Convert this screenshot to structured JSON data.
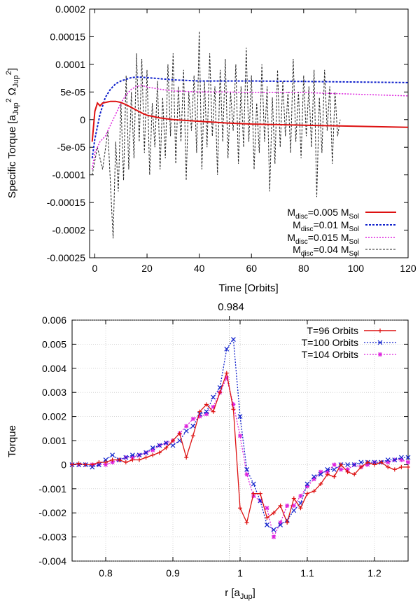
{
  "colors": {
    "red": "#dd1111",
    "blue": "#1122cc",
    "magenta": "#dd22dd",
    "black": "#222222",
    "grid": "#bbbbbb"
  },
  "chart_data": [
    {
      "type": "line",
      "xlabel": "Time [Orbits]",
      "ylabel": "Specific Torque [a",
      "ylabel_parts": [
        "Jup",
        "2",
        "Ω",
        "Jup",
        "2",
        "]"
      ],
      "xlim": [
        -2,
        120
      ],
      "ylim": [
        -0.00025,
        0.0002
      ],
      "xticks": [
        0,
        20,
        40,
        60,
        80,
        100,
        120
      ],
      "xtick_labels": [
        "0",
        "20",
        "40",
        "60",
        "80",
        "100",
        "120"
      ],
      "yticks": [
        -0.00025,
        -0.0002,
        -0.00015,
        -0.0001,
        -5e-05,
        0,
        5e-05,
        0.0001,
        0.00015,
        0.0002
      ],
      "ytick_labels": [
        "-0.00025",
        "-0.0002",
        "-0.00015",
        "-0.0001",
        "-5e-05",
        "0",
        "5e-05",
        "0.0001",
        "0.00015",
        "0.0002"
      ],
      "legend_position": "bottom-right",
      "legend": [
        {
          "prefix": "M",
          "sub": "disc",
          "mid": "=0.005 M",
          "sub2": "Sol"
        },
        {
          "prefix": "M",
          "sub": "disc",
          "mid": "=0.01 M",
          "sub2": "Sol"
        },
        {
          "prefix": "M",
          "sub": "disc",
          "mid": "=0.015 M",
          "sub2": "Sol"
        },
        {
          "prefix": "M",
          "sub": "disc",
          "mid": "=0.04 M",
          "sub2": "Sol"
        }
      ],
      "series": [
        {
          "name": "Mdisc=0.005 MSol",
          "x": [
            -1,
            0,
            1,
            2,
            3,
            4,
            5,
            6,
            8,
            10,
            12,
            14,
            16,
            18,
            20,
            25,
            30,
            40,
            50,
            60,
            70,
            80,
            90,
            100,
            110,
            120
          ],
          "y": [
            -4e-05,
            1.5e-05,
            3e-05,
            2.5e-05,
            3e-05,
            3.1e-05,
            3.2e-05,
            3.3e-05,
            3.3e-05,
            3.1e-05,
            2.7e-05,
            2.2e-05,
            1.7e-05,
            1.2e-05,
            8e-06,
            3e-06,
            0.0,
            -3e-06,
            -6e-06,
            -8e-06,
            -9e-06,
            -1e-05,
            -1.1e-05,
            -1.2e-05,
            -1.3e-05,
            -1.4e-05
          ]
        },
        {
          "name": "Mdisc=0.01 MSol",
          "x": [
            -1,
            0,
            2,
            4,
            6,
            8,
            10,
            12,
            14,
            16,
            20,
            25,
            30,
            40,
            50,
            60,
            80,
            100,
            120
          ],
          "y": [
            -7e-05,
            -3.5e-05,
            1e-05,
            4e-05,
            5.5e-05,
            6.5e-05,
            7e-05,
            7.3e-05,
            7.6e-05,
            7.7e-05,
            7.6e-05,
            7.4e-05,
            7.2e-05,
            7e-05,
            7e-05,
            7e-05,
            6.9e-05,
            6.8e-05,
            6.7e-05
          ]
        },
        {
          "name": "Mdisc=0.015 MSol",
          "x": [
            -1,
            0,
            2,
            4,
            6,
            8,
            10,
            12,
            14,
            16,
            18,
            20,
            25,
            30,
            40,
            50,
            60,
            80,
            100,
            120
          ],
          "y": [
            -9e-05,
            -6e-05,
            -4e-05,
            -3e-05,
            -1e-05,
            1e-05,
            3e-05,
            4.5e-05,
            5.5e-05,
            6e-05,
            6.2e-05,
            5.9e-05,
            5.5e-05,
            5.2e-05,
            5e-05,
            5e-05,
            4.9e-05,
            4.9e-05,
            4.6e-05,
            4.3e-05
          ]
        },
        {
          "name": "Mdisc=0.04 MSol",
          "x": [
            -1,
            1,
            3,
            5,
            7,
            8,
            9,
            10,
            11,
            12,
            13,
            14,
            15,
            16,
            17,
            18,
            19,
            20,
            21,
            22,
            23,
            24,
            25,
            26,
            27,
            28,
            29,
            30,
            31,
            32,
            33,
            34,
            35,
            36,
            37,
            38,
            39,
            40,
            41,
            42,
            43,
            44,
            45,
            46,
            47,
            48,
            49,
            50,
            51,
            52,
            53,
            54,
            55,
            56,
            57,
            58,
            59,
            60,
            61,
            62,
            63,
            64,
            65,
            66,
            67,
            68,
            69,
            70,
            71,
            72,
            73,
            74,
            75,
            76,
            77,
            78,
            79,
            80,
            81,
            82,
            83,
            84,
            85,
            86,
            87,
            88,
            89,
            90,
            91,
            92,
            93,
            94
          ],
          "y": [
            -0.0001,
            -5e-05,
            -9e-05,
            -2e-05,
            -0.000215,
            -4e-05,
            -0.00013,
            3e-05,
            -0.00011,
            8e-05,
            -9e-05,
            5e-05,
            -7e-05,
            0.00012,
            -4e-05,
            0.00011,
            -6e-05,
            9e-05,
            -0.0001,
            3e-05,
            -5e-05,
            7e-05,
            -9e-05,
            4e-05,
            -7e-05,
            0.0001,
            -3e-05,
            0.00012,
            -8e-05,
            6e-05,
            -4e-05,
            9e-05,
            -0.00011,
            5e-05,
            -2e-05,
            8e-05,
            -6e-05,
            0.00016,
            -9e-05,
            7e-05,
            -5e-05,
            0.00012,
            -3e-05,
            6e-05,
            -0.0001,
            9e-05,
            -4e-05,
            0.00011,
            -7e-05,
            5e-05,
            -2e-05,
            0.0001,
            -8e-05,
            6e-05,
            -5e-05,
            0.00013,
            -4e-05,
            8e-05,
            -9e-05,
            3e-05,
            -6e-05,
            0.0001,
            -4e-05,
            6e-05,
            -0.00013,
            4e-05,
            -8e-05,
            9e-05,
            -5e-05,
            7e-05,
            -3e-05,
            5e-05,
            -6e-05,
            0.00011,
            -4e-05,
            5e-05,
            -7e-05,
            8e-05,
            -3e-05,
            6e-05,
            -5e-05,
            9e-05,
            -0.00014,
            4e-05,
            -6e-05,
            9e-05,
            -2e-05,
            6e-05,
            -8e-05,
            5e-05,
            -3e-05,
            0.0
          ]
        }
      ]
    },
    {
      "type": "line",
      "title": "0.984",
      "xlabel": "r [a",
      "xlabel_sub": "Jup",
      "xlabel_end": "]",
      "ylabel": "Torque",
      "xlim": [
        0.75,
        1.25
      ],
      "ylim": [
        -0.004,
        0.006
      ],
      "vline": 0.984,
      "xticks": [
        0.8,
        0.9,
        1.0,
        1.1,
        1.2
      ],
      "xtick_labels": [
        "0.8",
        "0.9",
        "1",
        "1.1",
        "1.2"
      ],
      "yticks": [
        -0.004,
        -0.003,
        -0.002,
        -0.001,
        0,
        0.001,
        0.002,
        0.003,
        0.004,
        0.005,
        0.006
      ],
      "ytick_labels": [
        "-0.004",
        "-0.003",
        "-0.002",
        "-0.001",
        "0",
        "0.001",
        "0.002",
        "0.003",
        "0.004",
        "0.005",
        "0.006"
      ],
      "legend_position": "top-right",
      "legend": [
        "T=96 Orbits",
        "T=100 Orbits",
        "T=104 Orbits"
      ],
      "series": [
        {
          "name": "T=96 Orbits",
          "marker": "+",
          "x": [
            0.75,
            0.76,
            0.77,
            0.78,
            0.79,
            0.8,
            0.81,
            0.82,
            0.83,
            0.84,
            0.85,
            0.86,
            0.87,
            0.88,
            0.89,
            0.9,
            0.91,
            0.92,
            0.93,
            0.94,
            0.95,
            0.96,
            0.97,
            0.98,
            0.99,
            1.0,
            1.01,
            1.02,
            1.03,
            1.04,
            1.05,
            1.06,
            1.07,
            1.08,
            1.09,
            1.1,
            1.11,
            1.12,
            1.13,
            1.14,
            1.15,
            1.16,
            1.17,
            1.18,
            1.19,
            1.2,
            1.21,
            1.22,
            1.23,
            1.24,
            1.25
          ],
          "y": [
            0.0,
            5e-05,
            0.0,
            0.0,
            0.0001,
            0.0001,
            0.0002,
            0.0002,
            0.0001,
            0.0002,
            0.0002,
            0.0003,
            0.0004,
            0.0005,
            0.0007,
            0.001,
            0.0013,
            0.0003,
            0.0012,
            0.0022,
            0.0025,
            0.0022,
            0.003,
            0.0038,
            0.0023,
            -0.0018,
            -0.0024,
            -0.0012,
            -0.0012,
            -0.0022,
            -0.002,
            -0.0017,
            -0.0024,
            -0.0014,
            -0.0018,
            -0.0012,
            -0.0011,
            -0.0008,
            -0.0004,
            -0.0005,
            0.0,
            -0.0003,
            -0.0004,
            -0.0001,
            0.0001,
            0.0,
            0.0001,
            -0.0001,
            -0.0002,
            -0.0001,
            -0.0001
          ]
        },
        {
          "name": "T=100 Orbits",
          "marker": "x",
          "x": [
            0.75,
            0.76,
            0.77,
            0.78,
            0.79,
            0.8,
            0.81,
            0.82,
            0.83,
            0.84,
            0.85,
            0.86,
            0.87,
            0.88,
            0.89,
            0.9,
            0.91,
            0.92,
            0.93,
            0.94,
            0.95,
            0.96,
            0.97,
            0.98,
            0.99,
            1.0,
            1.01,
            1.02,
            1.03,
            1.04,
            1.05,
            1.06,
            1.07,
            1.08,
            1.09,
            1.1,
            1.11,
            1.12,
            1.13,
            1.14,
            1.15,
            1.16,
            1.17,
            1.18,
            1.19,
            1.2,
            1.21,
            1.22,
            1.23,
            1.24,
            1.25
          ],
          "y": [
            0.0,
            0.0,
            0.0,
            -0.0001,
            0.0,
            0.0002,
            0.0004,
            0.0002,
            0.0003,
            0.0004,
            0.0004,
            0.0005,
            0.0007,
            0.0008,
            0.0009,
            0.0008,
            0.001,
            0.0014,
            0.0016,
            0.0021,
            0.0022,
            0.0028,
            0.0032,
            0.0048,
            0.0052,
            0.002,
            -0.0002,
            -0.0008,
            -0.0015,
            -0.0025,
            -0.0027,
            -0.0025,
            -0.0023,
            -0.0019,
            -0.0016,
            -0.0008,
            -0.0005,
            -0.0004,
            -0.0002,
            -0.0002,
            0.0,
            0.0,
            0.0,
            0.0001,
            0.0001,
            0.0001,
            0.0001,
            0.0002,
            0.0002,
            0.0003,
            0.0003
          ]
        },
        {
          "name": "T=104 Orbits",
          "marker": "*",
          "x": [
            0.75,
            0.76,
            0.77,
            0.78,
            0.79,
            0.8,
            0.81,
            0.82,
            0.83,
            0.84,
            0.85,
            0.86,
            0.87,
            0.88,
            0.89,
            0.9,
            0.91,
            0.92,
            0.93,
            0.94,
            0.95,
            0.96,
            0.97,
            0.98,
            0.99,
            1.0,
            1.01,
            1.02,
            1.03,
            1.04,
            1.05,
            1.06,
            1.07,
            1.08,
            1.09,
            1.1,
            1.11,
            1.12,
            1.13,
            1.14,
            1.15,
            1.16,
            1.17,
            1.18,
            1.19,
            1.2,
            1.21,
            1.22,
            1.23,
            1.24,
            1.25
          ],
          "y": [
            0.0,
            0.0,
            0.0,
            0.0,
            0.0,
            0.0,
            0.0001,
            0.0002,
            0.0003,
            0.0003,
            0.0004,
            0.0005,
            0.0006,
            0.0008,
            0.0009,
            0.001,
            0.0013,
            0.0016,
            0.0019,
            0.002,
            0.0021,
            0.0024,
            0.003,
            0.0036,
            0.0025,
            0.0012,
            -0.0004,
            -0.0013,
            -0.0015,
            -0.0018,
            -0.003,
            -0.0024,
            -0.0017,
            -0.0017,
            -0.0013,
            -0.0009,
            -0.0006,
            -0.0003,
            -0.0003,
            0.0,
            -0.0002,
            -0.0002,
            0.0,
            -0.0001,
            0.0,
            0.0001,
            0.0001,
            0.0001,
            0.0002,
            0.0002,
            0.0001
          ]
        }
      ]
    }
  ]
}
